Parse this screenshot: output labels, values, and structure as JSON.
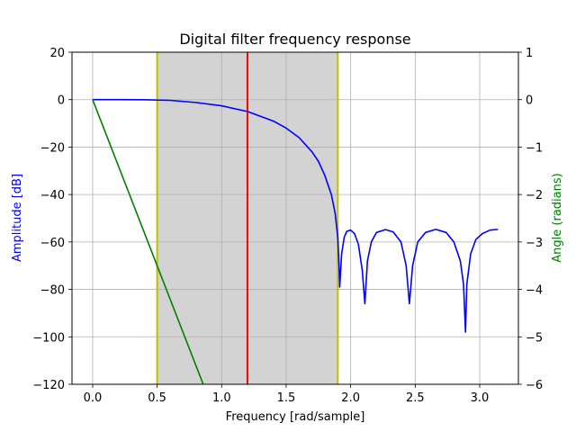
{
  "chart_data": {
    "type": "line",
    "title": "Digital filter frequency response",
    "xlabel": "Frequency [rad/sample]",
    "ylabel_left": "Amplitude [dB]",
    "ylabel_right": "Angle (radians)",
    "xlim": [
      -0.16,
      3.3
    ],
    "ylim_left": [
      -120,
      20
    ],
    "ylim_right": [
      -6,
      1
    ],
    "grid": true,
    "x_ticks": [
      "0.0",
      "0.5",
      "1.0",
      "1.5",
      "2.0",
      "2.5",
      "3.0"
    ],
    "x_tick_values": [
      0,
      0.5,
      1.0,
      1.5,
      2.0,
      2.5,
      3.0
    ],
    "y_left_ticks": [
      "20",
      "0",
      "−20",
      "−40",
      "−60",
      "−80",
      "−100",
      "−120"
    ],
    "y_left_tick_values": [
      20,
      0,
      -20,
      -40,
      -60,
      -80,
      -100,
      -120
    ],
    "y_right_ticks": [
      "1",
      "0",
      "−1",
      "−2",
      "−3",
      "−4",
      "−5",
      "−6"
    ],
    "y_right_tick_values": [
      1,
      0,
      -1,
      -2,
      -3,
      -4,
      -5,
      -6
    ],
    "shaded_band": {
      "x_start": 0.5,
      "x_end": 1.9,
      "color": "#d3d3d3"
    },
    "vlines": [
      {
        "name": "band-start-line",
        "x": 0.5,
        "color": "#bfbf00"
      },
      {
        "name": "band-end-line",
        "x": 1.9,
        "color": "#bfbf00"
      },
      {
        "name": "cutoff-line",
        "x": 1.2,
        "color": "#ff0000"
      }
    ],
    "series": [
      {
        "name": "Amplitude [dB]",
        "axis": "left",
        "color": "#0000ff",
        "points": [
          [
            0.0,
            0.0
          ],
          [
            0.2,
            0.0
          ],
          [
            0.4,
            -0.05
          ],
          [
            0.6,
            -0.3
          ],
          [
            0.8,
            -1.2
          ],
          [
            1.0,
            -2.6
          ],
          [
            1.2,
            -5.0
          ],
          [
            1.4,
            -9.0
          ],
          [
            1.5,
            -12.0
          ],
          [
            1.6,
            -16.0
          ],
          [
            1.7,
            -22.0
          ],
          [
            1.75,
            -26.0
          ],
          [
            1.8,
            -32.0
          ],
          [
            1.85,
            -40.0
          ],
          [
            1.88,
            -48.0
          ],
          [
            1.9,
            -58.0
          ],
          [
            1.91,
            -70.0
          ],
          [
            1.915,
            -79.0
          ],
          [
            1.93,
            -65.0
          ],
          [
            1.95,
            -58.0
          ],
          [
            1.97,
            -55.5
          ],
          [
            2.0,
            -55.0
          ],
          [
            2.03,
            -56.5
          ],
          [
            2.06,
            -61.0
          ],
          [
            2.09,
            -72.0
          ],
          [
            2.11,
            -86.0
          ],
          [
            2.13,
            -68.0
          ],
          [
            2.16,
            -60.0
          ],
          [
            2.2,
            -56.0
          ],
          [
            2.27,
            -54.8
          ],
          [
            2.33,
            -55.8
          ],
          [
            2.39,
            -60.0
          ],
          [
            2.43,
            -70.0
          ],
          [
            2.455,
            -86.0
          ],
          [
            2.48,
            -70.0
          ],
          [
            2.52,
            -60.0
          ],
          [
            2.58,
            -56.0
          ],
          [
            2.66,
            -54.7
          ],
          [
            2.74,
            -56.0
          ],
          [
            2.8,
            -60.0
          ],
          [
            2.85,
            -68.0
          ],
          [
            2.875,
            -78.0
          ],
          [
            2.89,
            -98.0
          ],
          [
            2.9,
            -78.0
          ],
          [
            2.93,
            -65.0
          ],
          [
            2.97,
            -59.0
          ],
          [
            3.02,
            -56.5
          ],
          [
            3.08,
            -55.0
          ],
          [
            3.14159,
            -54.7
          ]
        ]
      },
      {
        "name": "Angle (radians)",
        "axis": "right",
        "color": "#008000",
        "points": [
          [
            0.0,
            0.0
          ],
          [
            0.857,
            -6.0
          ]
        ]
      }
    ]
  }
}
